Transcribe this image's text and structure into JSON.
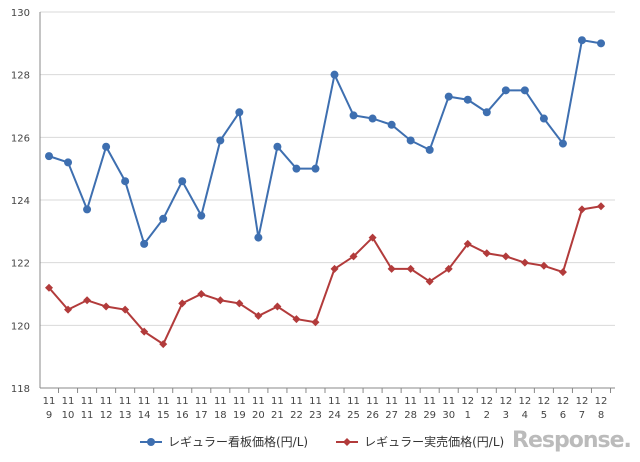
{
  "chart_data": {
    "type": "line",
    "title": "",
    "xlabel": "",
    "ylabel": "",
    "ylim": [
      118,
      130
    ],
    "yticks": [
      118,
      120,
      122,
      124,
      126,
      128,
      130
    ],
    "grid": true,
    "legend_position": "bottom",
    "categories": [
      [
        "11",
        "9"
      ],
      [
        "11",
        "10"
      ],
      [
        "11",
        "11"
      ],
      [
        "11",
        "12"
      ],
      [
        "11",
        "13"
      ],
      [
        "11",
        "14"
      ],
      [
        "11",
        "15"
      ],
      [
        "11",
        "16"
      ],
      [
        "11",
        "17"
      ],
      [
        "11",
        "18"
      ],
      [
        "11",
        "19"
      ],
      [
        "11",
        "20"
      ],
      [
        "11",
        "21"
      ],
      [
        "11",
        "22"
      ],
      [
        "11",
        "23"
      ],
      [
        "11",
        "24"
      ],
      [
        "11",
        "25"
      ],
      [
        "11",
        "26"
      ],
      [
        "11",
        "27"
      ],
      [
        "11",
        "28"
      ],
      [
        "11",
        "29"
      ],
      [
        "11",
        "30"
      ],
      [
        "12",
        "1"
      ],
      [
        "12",
        "2"
      ],
      [
        "12",
        "3"
      ],
      [
        "12",
        "4"
      ],
      [
        "12",
        "5"
      ],
      [
        "12",
        "6"
      ],
      [
        "12",
        "7"
      ],
      [
        "12",
        "8"
      ]
    ],
    "series": [
      {
        "name": "レギュラー看板価格(円/L)",
        "color": "#3e6fb0",
        "marker": "circle",
        "values": [
          125.4,
          125.2,
          123.7,
          125.7,
          124.6,
          122.6,
          123.4,
          124.6,
          123.5,
          125.9,
          126.8,
          122.8,
          125.7,
          125.0,
          125.0,
          128.0,
          126.7,
          126.6,
          126.4,
          125.9,
          125.6,
          127.3,
          127.2,
          126.8,
          127.5,
          127.5,
          126.6,
          125.8,
          129.1,
          129.0
        ]
      },
      {
        "name": "レギュラー実売価格(円/L)",
        "color": "#b23b3b",
        "marker": "diamond",
        "values": [
          121.2,
          120.5,
          120.8,
          120.6,
          120.5,
          119.8,
          119.4,
          120.7,
          121.0,
          120.8,
          120.7,
          120.3,
          120.6,
          120.2,
          120.1,
          121.8,
          122.2,
          122.8,
          121.8,
          121.8,
          121.4,
          121.8,
          122.6,
          122.3,
          122.2,
          122.0,
          121.9,
          121.7,
          123.7,
          123.8
        ]
      }
    ]
  },
  "watermark": "Response."
}
